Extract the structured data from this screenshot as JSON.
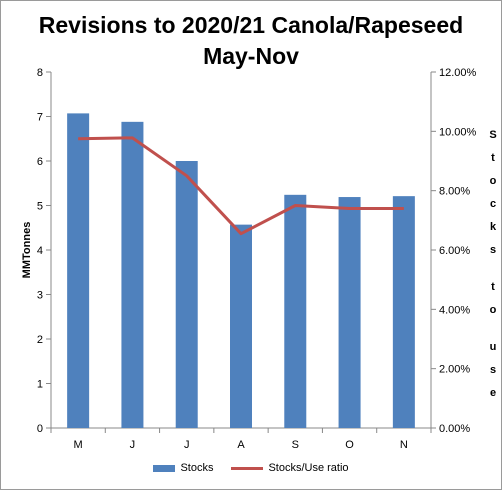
{
  "chart_data": {
    "type": "bar+line",
    "title": "Revisions to 2020/21 Canola/Rapeseed\nMay-Nov",
    "categories": [
      "M",
      "J",
      "J",
      "A",
      "S",
      "O",
      "N"
    ],
    "series": [
      {
        "name": "Stocks",
        "type": "bar",
        "axis": "left",
        "values": [
          7.07,
          6.88,
          6.0,
          4.57,
          5.24,
          5.19,
          5.21
        ],
        "color": "#4f81bd"
      },
      {
        "name": "Stocks/Use ratio",
        "type": "line",
        "axis": "right",
        "values": [
          0.0975,
          0.0978,
          0.085,
          0.0655,
          0.075,
          0.074,
          0.074
        ],
        "color": "#c0504d"
      }
    ],
    "ylabel": "MMTonnes",
    "ylabel_right": "Stocks to use",
    "ylim": [
      0,
      8
    ],
    "yticks": [
      "0",
      "1",
      "2",
      "3",
      "4",
      "5",
      "6",
      "7",
      "8"
    ],
    "ylim_right": [
      0,
      0.12
    ],
    "yticks_right": [
      "0.00%",
      "2.00%",
      "4.00%",
      "6.00%",
      "8.00%",
      "10.00%",
      "12.00%"
    ],
    "grid": false,
    "legend_position": "bottom"
  }
}
